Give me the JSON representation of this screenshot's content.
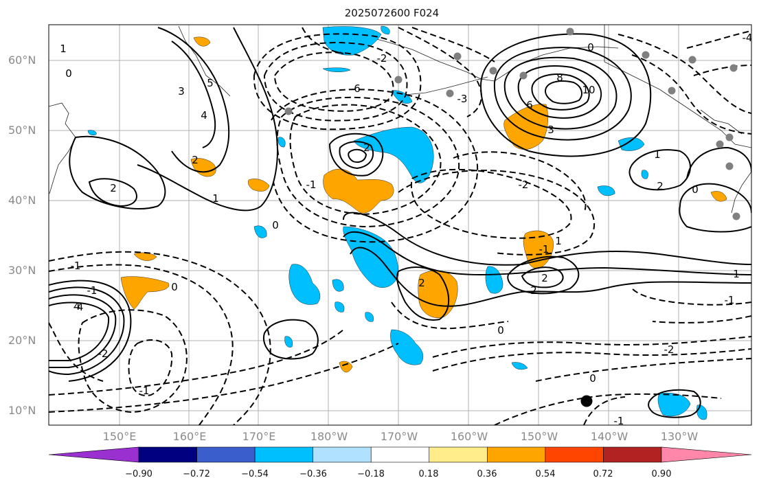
{
  "title": "2025072600 F024",
  "lat_labels": [
    "60°N",
    "50°N",
    "40°N",
    "30°N",
    "20°N",
    "10°N"
  ],
  "lon_labels": [
    "150°E",
    "160°E",
    "170°E",
    "180°W",
    "170°W",
    "160°W",
    "150°W",
    "140°W",
    "130°W"
  ],
  "colorbar": {
    "ticks": [
      "−0.90",
      "−0.72",
      "−0.54",
      "−0.36",
      "−0.18",
      "0.18",
      "0.36",
      "0.54",
      "0.72",
      "0.90"
    ],
    "colors": [
      "#9b30d0",
      "#000080",
      "#3a5fcd",
      "#00bfff",
      "#b0e2ff",
      "#ffffff",
      "#ffec8b",
      "#ffa500",
      "#ff4500",
      "#b22222",
      "#ff88aa"
    ]
  },
  "contour_labels": [
    "1",
    "0",
    "3",
    "4",
    "5",
    "2",
    "-1",
    "4",
    "6",
    "-2",
    "-3",
    "-4",
    "8",
    "10",
    "0",
    "6",
    "3",
    "1",
    "2",
    "0",
    "-1",
    "2",
    "1",
    "2",
    "-2",
    "0",
    "2",
    "-1",
    "-2",
    "-4",
    "0",
    "-1",
    "1",
    "-1",
    "2",
    "0",
    "-2",
    "-1",
    "0",
    "1",
    "2",
    "-1"
  ],
  "map_colors": {
    "positive_fill": "#ffa500",
    "negative_fill": "#00bfff",
    "contour": "#000000",
    "grid": "#b0b0b0",
    "station_marker": "#808080",
    "storm_marker": "#000000"
  }
}
